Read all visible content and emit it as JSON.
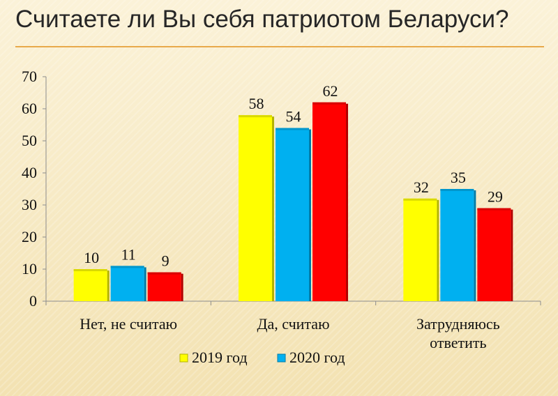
{
  "title": "Считаете ли Вы себя патриотом Беларуси?",
  "chart_data": {
    "type": "bar",
    "categories": [
      "Нет, не считаю",
      "Да, считаю",
      "Затрудняюсь ответить"
    ],
    "series": [
      {
        "name": "2019 год",
        "color": "#ffff00",
        "values": [
          10,
          58,
          32
        ]
      },
      {
        "name": "2020 год",
        "color": "#00b0f0",
        "values": [
          11,
          54,
          35
        ]
      },
      {
        "name": "",
        "color": "#ff0000",
        "values": [
          9,
          62,
          29
        ]
      }
    ],
    "ylim": [
      0,
      70
    ],
    "yticks": [
      0,
      10,
      20,
      30,
      40,
      50,
      60,
      70
    ],
    "grid": false,
    "legend_position": "bottom"
  }
}
